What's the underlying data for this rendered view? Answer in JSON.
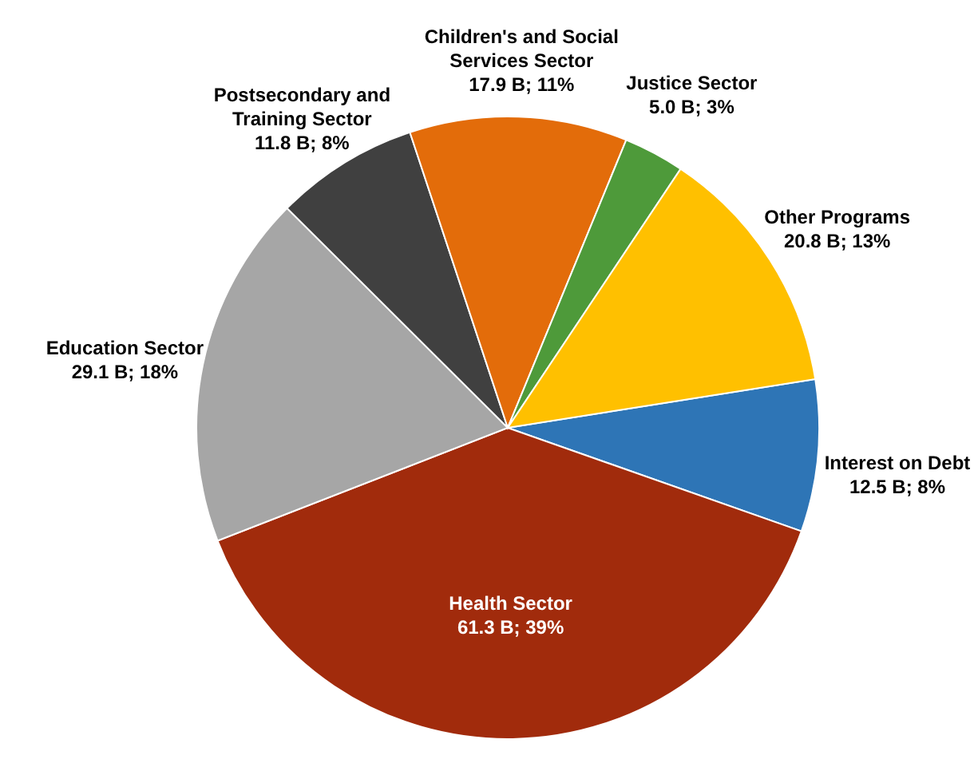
{
  "chart_data": {
    "type": "pie",
    "categories": [
      "Interest on Debt",
      "Health Sector",
      "Education Sector",
      "Postsecondary and Training Sector",
      "Children's and Social Services Sector",
      "Justice Sector",
      "Other Programs"
    ],
    "values": [
      12.5,
      61.3,
      29.1,
      11.8,
      17.9,
      5.0,
      20.8
    ],
    "value_labels": [
      "12.5 B; 8%",
      "61.3 B; 39%",
      "29.1 B; 18%",
      "11.8 B; 8%",
      "17.9 B; 11%",
      "5.0 B; 3%",
      "20.8 B; 13%"
    ],
    "colors": [
      "#2e75b6",
      "#a12b0c",
      "#a6a6a6",
      "#404040",
      "#e36c0a",
      "#4e9a3a",
      "#ffc000"
    ]
  }
}
